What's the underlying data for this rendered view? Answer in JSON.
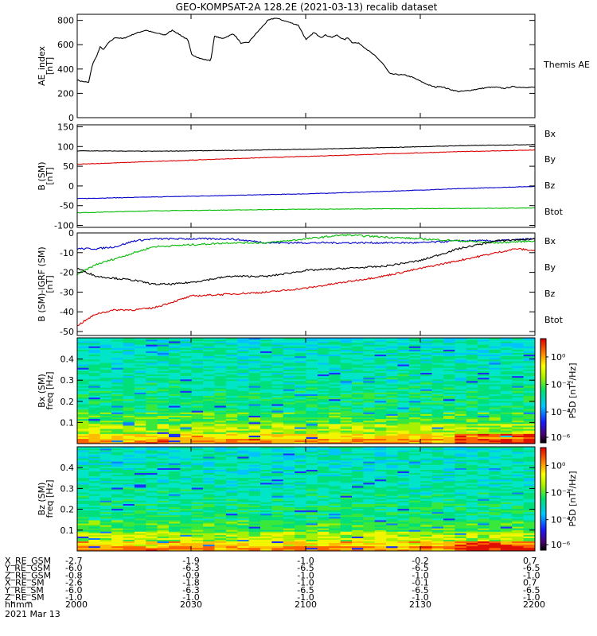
{
  "chart_data": [
    {
      "type": "line",
      "title": "GEO-KOMPSAT-2A 128.2E (2021-03-13) recalib dataset",
      "ylabel_lines": [
        "AE_index",
        "[nT]"
      ],
      "ylim": [
        0,
        850
      ],
      "yticks": [
        0,
        200,
        400,
        600,
        800
      ],
      "xlim": [
        0,
        120
      ],
      "series": [
        {
          "name": "Themis AE",
          "color": "#000000",
          "x": [
            0,
            1,
            2,
            3,
            4,
            5,
            6,
            7,
            8,
            10,
            12,
            15,
            18,
            20,
            23,
            25,
            27,
            29,
            30,
            32,
            33,
            35,
            36,
            38,
            41,
            43,
            45,
            46,
            48,
            50,
            52,
            55,
            58,
            60,
            62,
            64,
            65,
            67,
            68,
            70,
            71,
            72,
            74,
            76,
            78,
            80,
            82,
            84,
            86,
            88,
            90,
            92,
            94,
            95,
            97,
            98,
            100,
            102,
            104,
            106,
            108,
            110,
            112,
            114,
            116,
            118,
            120
          ],
          "y": [
            310,
            300,
            295,
            290,
            440,
            500,
            580,
            560,
            610,
            660,
            650,
            690,
            720,
            700,
            680,
            720,
            680,
            640,
            520,
            490,
            480,
            470,
            670,
            650,
            690,
            610,
            620,
            660,
            730,
            800,
            820,
            790,
            760,
            640,
            700,
            660,
            680,
            660,
            680,
            640,
            660,
            620,
            610,
            560,
            510,
            450,
            360,
            355,
            350,
            330,
            300,
            270,
            250,
            260,
            240,
            230,
            215,
            220,
            230,
            240,
            250,
            250,
            240,
            255,
            250,
            250,
            250
          ]
        }
      ]
    },
    {
      "type": "line",
      "ylabel_lines": [
        "B (SM)",
        "[nT]"
      ],
      "ylim": [
        -105,
        155
      ],
      "yticks": [
        -100,
        -50,
        0,
        50,
        100,
        150
      ],
      "xlim": [
        0,
        120
      ],
      "series": [
        {
          "name": "Bx",
          "color": "#0000cc",
          "x": [
            0,
            20,
            40,
            60,
            80,
            100,
            120
          ],
          "y": [
            -32,
            -28,
            -24,
            -20,
            -14,
            -7,
            -1
          ]
        },
        {
          "name": "By",
          "color": "#00bb00",
          "x": [
            0,
            20,
            40,
            60,
            80,
            100,
            120
          ],
          "y": [
            -68,
            -63,
            -61,
            -59,
            -58,
            -57,
            -56
          ]
        },
        {
          "name": "Bz",
          "color": "#dd0000",
          "x": [
            0,
            20,
            40,
            60,
            80,
            100,
            120
          ],
          "y": [
            55,
            62,
            69,
            75,
            81,
            87,
            91
          ]
        },
        {
          "name": "Btot",
          "color": "#000000",
          "x": [
            0,
            20,
            40,
            60,
            80,
            100,
            120
          ],
          "y": [
            89,
            88,
            90,
            93,
            97,
            102,
            105
          ]
        }
      ]
    },
    {
      "type": "line",
      "ylabel_lines": [
        "B (SM)-IGRF (SM)",
        "[nT]"
      ],
      "ylim": [
        -52,
        0
      ],
      "yticks": [
        -50,
        -40,
        -30,
        -20,
        -10,
        0
      ],
      "xlim": [
        0,
        120
      ],
      "series": [
        {
          "name": "Bx",
          "color": "#0000cc",
          "x": [
            0,
            5,
            10,
            15,
            20,
            30,
            40,
            50,
            60,
            70,
            80,
            90,
            100,
            110,
            120
          ],
          "y": [
            -8,
            -8,
            -7,
            -4,
            -3,
            -3,
            -3,
            -5,
            -5,
            -5,
            -5,
            -5,
            -4,
            -4,
            -3
          ]
        },
        {
          "name": "By",
          "color": "#00bb00",
          "x": [
            0,
            5,
            10,
            15,
            20,
            30,
            40,
            50,
            60,
            65,
            70,
            80,
            90,
            100,
            110,
            120
          ],
          "y": [
            -21,
            -16,
            -13,
            -10,
            -7,
            -6,
            -5,
            -5,
            -3,
            -2,
            -1,
            -2,
            -3,
            -4,
            -5,
            -4
          ]
        },
        {
          "name": "Bz",
          "color": "#dd0000",
          "x": [
            0,
            5,
            10,
            15,
            20,
            25,
            30,
            40,
            50,
            60,
            70,
            80,
            90,
            100,
            110,
            115,
            120
          ],
          "y": [
            -47,
            -41,
            -39,
            -39,
            -38,
            -35,
            -32,
            -31,
            -30,
            -28,
            -25,
            -22,
            -18,
            -14,
            -10,
            -8,
            -9
          ]
        },
        {
          "name": "Btot",
          "color": "#000000",
          "x": [
            0,
            5,
            10,
            15,
            20,
            25,
            30,
            40,
            50,
            60,
            70,
            80,
            90,
            100,
            110,
            120
          ],
          "y": [
            -18,
            -22,
            -23,
            -24,
            -26,
            -26,
            -25,
            -22,
            -22,
            -19,
            -18,
            -17,
            -14,
            -8,
            -4,
            -3
          ]
        }
      ]
    },
    {
      "type": "heatmap",
      "ylabel_lines": [
        "Bx (SM)",
        "freq [Hz]"
      ],
      "ylim": [
        0,
        0.5
      ],
      "yticks": [
        0.1,
        0.2,
        0.3,
        0.4
      ],
      "colorbar": {
        "label": "PSD [nT²/Hz]",
        "ticks": [
          "10⁰",
          "10⁻²",
          "10⁻⁴",
          "10⁻⁶"
        ]
      }
    },
    {
      "type": "heatmap",
      "ylabel_lines": [
        "Bz (SM)",
        "freq [Hz]"
      ],
      "ylim": [
        0,
        0.5
      ],
      "yticks": [
        0.1,
        0.2,
        0.3,
        0.4
      ],
      "colorbar": {
        "label": "PSD [nT²/Hz]",
        "ticks": [
          "10⁰",
          "10⁻²",
          "10⁻⁴",
          "10⁻⁶"
        ]
      }
    }
  ],
  "ephemeris": {
    "rows": [
      {
        "label": "X_RE_GSM",
        "values": [
          "-2.7",
          "-1.9",
          "-1.0",
          "-0.2",
          "0.7"
        ]
      },
      {
        "label": "Y_RE_GSM",
        "values": [
          "-6.0",
          "-6.3",
          "-6.5",
          "-6.5",
          "-6.5"
        ]
      },
      {
        "label": "Z_RE_GSM",
        "values": [
          "-0.8",
          "-0.9",
          "-1.0",
          "-1.0",
          "-1.0"
        ]
      },
      {
        "label": "X_RE_SM",
        "values": [
          "-2.6",
          "-1.8",
          "-1.0",
          "-0.1",
          "0.7"
        ]
      },
      {
        "label": "Y_RE_SM",
        "values": [
          "-6.0",
          "-6.3",
          "-6.5",
          "-6.5",
          "-6.5"
        ]
      },
      {
        "label": "Z_RE_SM",
        "values": [
          "-1.0",
          "-1.0",
          "-1.0",
          "-1.0",
          "-1.0"
        ]
      },
      {
        "label": "hhmm",
        "values": [
          "2000",
          "2030",
          "2100",
          "2130",
          "2200"
        ]
      }
    ],
    "date": "2021 Mar 13"
  }
}
